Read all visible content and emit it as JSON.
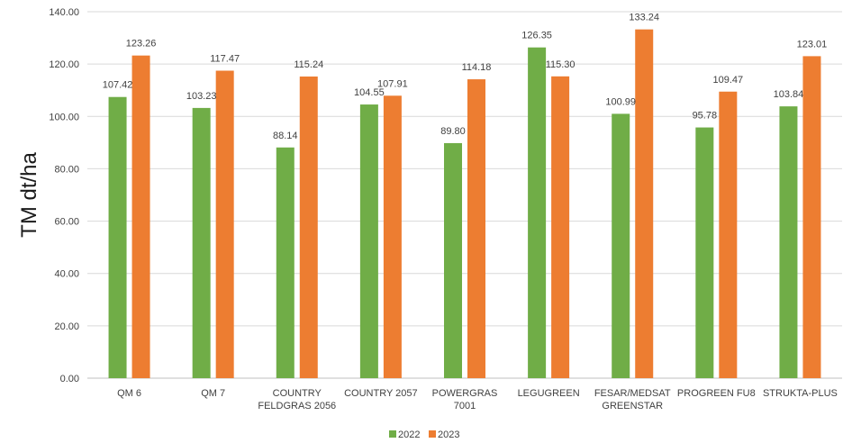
{
  "chart_data": {
    "type": "bar",
    "title": "",
    "xlabel": "",
    "ylabel": "TM dt/ha",
    "ylim": [
      0,
      140
    ],
    "ytick_step": 20,
    "ytick_labels": [
      "0.00",
      "20.00",
      "40.00",
      "60.00",
      "80.00",
      "100.00",
      "120.00",
      "140.00"
    ],
    "grid": true,
    "legend_position": "bottom",
    "categories": [
      [
        "QM 6"
      ],
      [
        "QM 7"
      ],
      [
        "COUNTRY",
        "FELDGRAS 2056"
      ],
      [
        "COUNTRY 2057"
      ],
      [
        "POWERGRAS",
        "7001"
      ],
      [
        "LEGUGREEN"
      ],
      [
        "FESAR/MEDSAT",
        "GREENSTAR"
      ],
      [
        "PROGREEN FU8"
      ],
      [
        "STRUKTA-PLUS"
      ]
    ],
    "series": [
      {
        "name": "2022",
        "color": "#70ad47",
        "values": [
          107.42,
          103.23,
          88.14,
          104.55,
          89.8,
          126.35,
          100.99,
          95.78,
          103.84
        ],
        "labels": [
          "107.42",
          "103.23",
          "88.14",
          "104.55",
          "89.80",
          "126.35",
          "100.99",
          "95.78",
          "103.84"
        ]
      },
      {
        "name": "2023",
        "color": "#ed7d31",
        "values": [
          123.26,
          117.47,
          115.24,
          107.91,
          114.18,
          115.3,
          133.24,
          109.47,
          123.01
        ],
        "labels": [
          "123.26",
          "117.47",
          "115.24",
          "107.91",
          "114.18",
          "115.30",
          "133.24",
          "109.47",
          "123.01"
        ]
      }
    ]
  }
}
